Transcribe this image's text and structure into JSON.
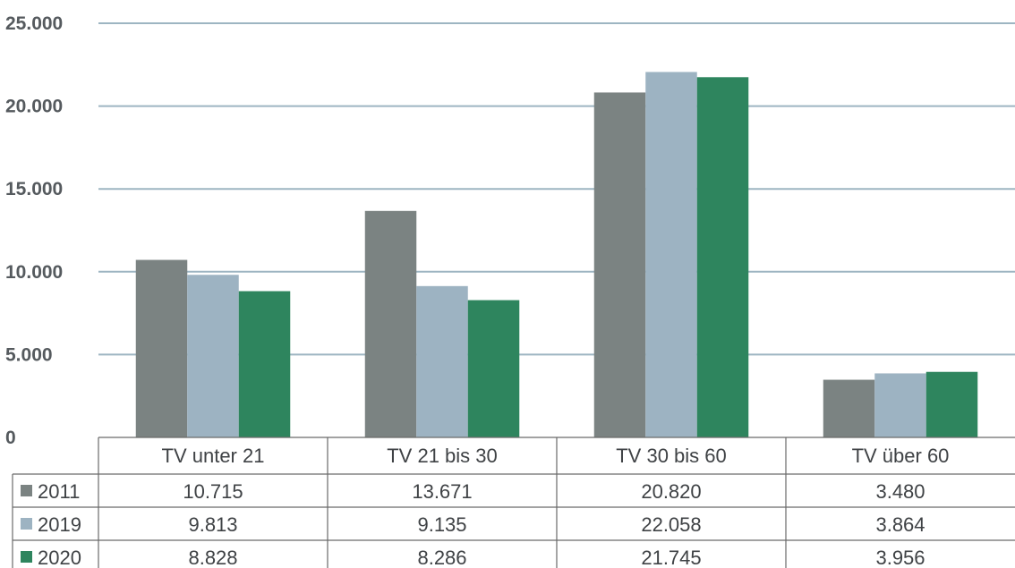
{
  "colors": {
    "series": [
      "#7b8382",
      "#9db3c2",
      "#2e855e"
    ],
    "gridline": "#9db5c2",
    "table_line": "#6a6a6a"
  },
  "chart_data": {
    "type": "bar",
    "categories": [
      "TV unter 21",
      "TV 21 bis 30",
      "TV 30 bis 60",
      "TV über 60"
    ],
    "series": [
      {
        "name": "2011",
        "values": [
          10715,
          13671,
          20820,
          3480
        ],
        "labels": [
          "10.715",
          "13.671",
          "20.820",
          "3.480"
        ]
      },
      {
        "name": "2019",
        "values": [
          9813,
          9135,
          22058,
          3864
        ],
        "labels": [
          "9.813",
          "9.135",
          "22.058",
          "3.864"
        ]
      },
      {
        "name": "2020",
        "values": [
          8828,
          8286,
          21745,
          3956
        ],
        "labels": [
          "8.828",
          "8.286",
          "21.745",
          "3.956"
        ]
      }
    ],
    "yticks": [
      0,
      5000,
      10000,
      15000,
      20000,
      25000
    ],
    "ytick_labels": [
      "0",
      "5.000",
      "10.000",
      "15.000",
      "20.000",
      "25.000"
    ],
    "ylim": [
      0,
      25000
    ],
    "grid": true,
    "legend": "data table below chart",
    "title": "",
    "xlabel": "",
    "ylabel": ""
  }
}
